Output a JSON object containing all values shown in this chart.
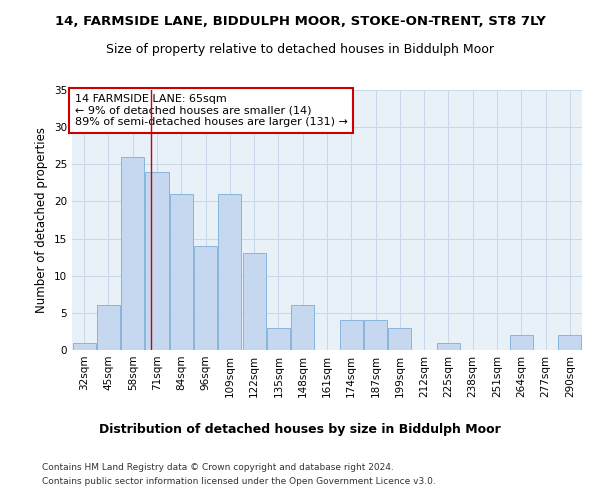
{
  "title1": "14, FARMSIDE LANE, BIDDULPH MOOR, STOKE-ON-TRENT, ST8 7LY",
  "title2": "Size of property relative to detached houses in Biddulph Moor",
  "xlabel": "Distribution of detached houses by size in Biddulph Moor",
  "ylabel": "Number of detached properties",
  "categories": [
    "32sqm",
    "45sqm",
    "58sqm",
    "71sqm",
    "84sqm",
    "96sqm",
    "109sqm",
    "122sqm",
    "135sqm",
    "148sqm",
    "161sqm",
    "174sqm",
    "187sqm",
    "199sqm",
    "212sqm",
    "225sqm",
    "238sqm",
    "251sqm",
    "264sqm",
    "277sqm",
    "290sqm"
  ],
  "values": [
    1,
    6,
    26,
    24,
    21,
    14,
    21,
    13,
    3,
    6,
    0,
    4,
    4,
    3,
    0,
    1,
    0,
    0,
    2,
    0,
    2
  ],
  "bar_color": "#c5d8f0",
  "bar_edge_color": "#7aaed6",
  "grid_color": "#c8d8ea",
  "background_color": "#e8f0f8",
  "annotation_box_text": "14 FARMSIDE LANE: 65sqm\n← 9% of detached houses are smaller (14)\n89% of semi-detached houses are larger (131) →",
  "annotation_box_color": "#ffffff",
  "annotation_box_edge_color": "#cc0000",
  "red_line_x": 2.77,
  "ylim": [
    0,
    35
  ],
  "yticks": [
    0,
    5,
    10,
    15,
    20,
    25,
    30,
    35
  ],
  "footer1": "Contains HM Land Registry data © Crown copyright and database right 2024.",
  "footer2": "Contains public sector information licensed under the Open Government Licence v3.0.",
  "title1_fontsize": 9.5,
  "title2_fontsize": 9,
  "xlabel_fontsize": 9,
  "ylabel_fontsize": 8.5,
  "tick_fontsize": 7.5,
  "ann_fontsize": 8,
  "footer_fontsize": 6.5
}
